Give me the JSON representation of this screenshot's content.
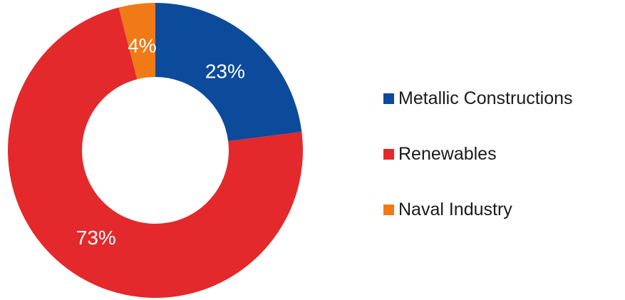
{
  "chart_data": {
    "type": "pie",
    "donut": true,
    "start_angle_deg": 0,
    "direction": "clockwise",
    "legend_position": "right",
    "categories": [
      "Metallic Constructions",
      "Renewables",
      "Naval Industry"
    ],
    "values": [
      23,
      73,
      4
    ],
    "labels": [
      "23%",
      "73%",
      "4%"
    ],
    "colors": [
      "#0c4a9b",
      "#e3292b",
      "#ef7a17"
    ],
    "label_color": "#ffffff"
  }
}
